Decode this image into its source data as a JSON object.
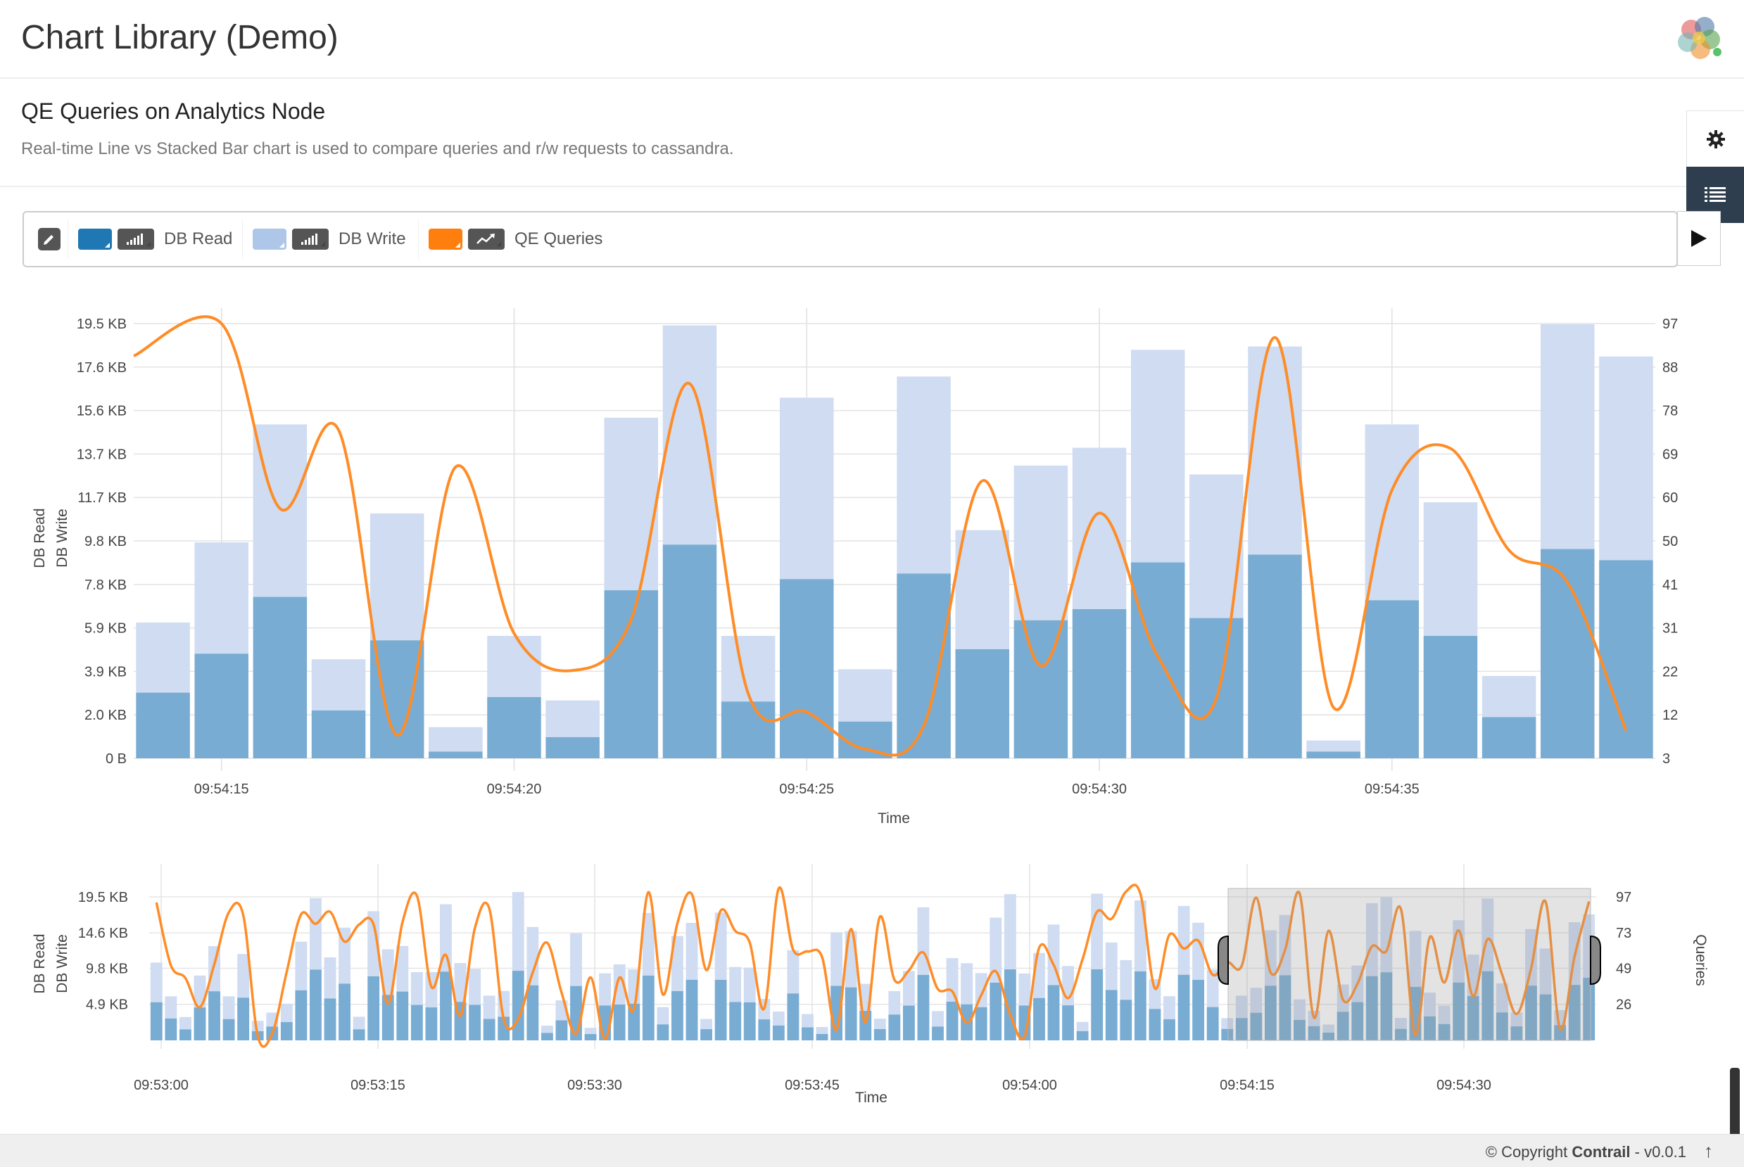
{
  "header": {
    "title": "Chart Library (Demo)"
  },
  "page": {
    "title": "QE Queries on Analytics Node",
    "description": "Real-time Line vs Stacked Bar chart is used to compare queries and r/w requests to cassandra."
  },
  "legend": {
    "items": [
      {
        "label": "DB Read",
        "color": "#1f77b4",
        "icon": "bar-chart-icon"
      },
      {
        "label": "DB Write",
        "color": "#aec7e8",
        "icon": "bar-chart-icon"
      },
      {
        "label": "QE Queries",
        "color": "#ff7f0e",
        "icon": "line-chart-icon"
      }
    ]
  },
  "footer": {
    "copyright_prefix": "© Copyright",
    "brand": "Contrail",
    "version": "- v0.0.1",
    "top_icon": "↑"
  },
  "chart_data": [
    {
      "type": "bar",
      "stacked": true,
      "xlabel": "Time",
      "ylabel": [
        "DB Read",
        "DB Write"
      ],
      "y_ticks": [
        "0 B",
        "2.0 KB",
        "3.9 KB",
        "5.9 KB",
        "7.8 KB",
        "9.8 KB",
        "11.7 KB",
        "13.7 KB",
        "15.6 KB",
        "17.6 KB",
        "19.5 KB"
      ],
      "ylim_kb": [
        0,
        19.5
      ],
      "y2_ticks": [
        "3",
        "12",
        "22",
        "31",
        "41",
        "50",
        "60",
        "69",
        "78",
        "88",
        "97"
      ],
      "y2lim": [
        3,
        97
      ],
      "x_ticks": [
        "09:54:15",
        "09:54:20",
        "09:54:25",
        "09:54:30",
        "09:54:35"
      ],
      "x_tick_index": [
        1.5,
        6.5,
        11.5,
        16.5,
        21.5
      ],
      "series": [
        {
          "name": "DB Read",
          "color": "#1f77b4",
          "values": [
            2.95,
            4.7,
            7.25,
            2.15,
            5.3,
            0.3,
            2.75,
            0.95,
            7.55,
            9.6,
            2.55,
            8.05,
            1.65,
            8.3,
            4.9,
            6.2,
            6.7,
            8.8,
            6.3,
            9.15,
            0.3,
            7.1,
            5.5,
            1.85,
            9.4,
            8.9
          ]
        },
        {
          "name": "DB Write",
          "color": "#aec7e8",
          "values": [
            3.15,
            5.0,
            7.75,
            2.3,
            5.7,
            1.1,
            2.75,
            1.65,
            7.75,
            9.85,
            2.95,
            8.15,
            2.35,
            8.85,
            5.35,
            6.95,
            7.25,
            9.55,
            6.45,
            9.35,
            0.5,
            7.9,
            6.0,
            1.85,
            10.1,
            9.15
          ]
        },
        {
          "name": "QE Queries",
          "color": "#ff7f0e",
          "axis": "right",
          "values": [
            90,
            97,
            57,
            74,
            8,
            66,
            30,
            22,
            33,
            84,
            17,
            13,
            5,
            10,
            63,
            23,
            56,
            25,
            16,
            94,
            14,
            61,
            70,
            48,
            41,
            9
          ]
        }
      ]
    },
    {
      "type": "bar",
      "stacked": true,
      "role": "overview-brush",
      "xlabel": "Time",
      "ylabel": [
        "DB Read",
        "DB Write"
      ],
      "y2label": "Queries",
      "y_ticks": [
        "4.9 KB",
        "9.8 KB",
        "14.6 KB",
        "19.5 KB"
      ],
      "y2_ticks": [
        "26",
        "49",
        "73",
        "97"
      ],
      "x_ticks": [
        "09:53:00",
        "09:53:15",
        "09:53:30",
        "09:53:45",
        "09:54:00",
        "09:54:15",
        "09:54:30"
      ],
      "brush_range": [
        "09:54:13",
        "09:54:38"
      ]
    }
  ]
}
